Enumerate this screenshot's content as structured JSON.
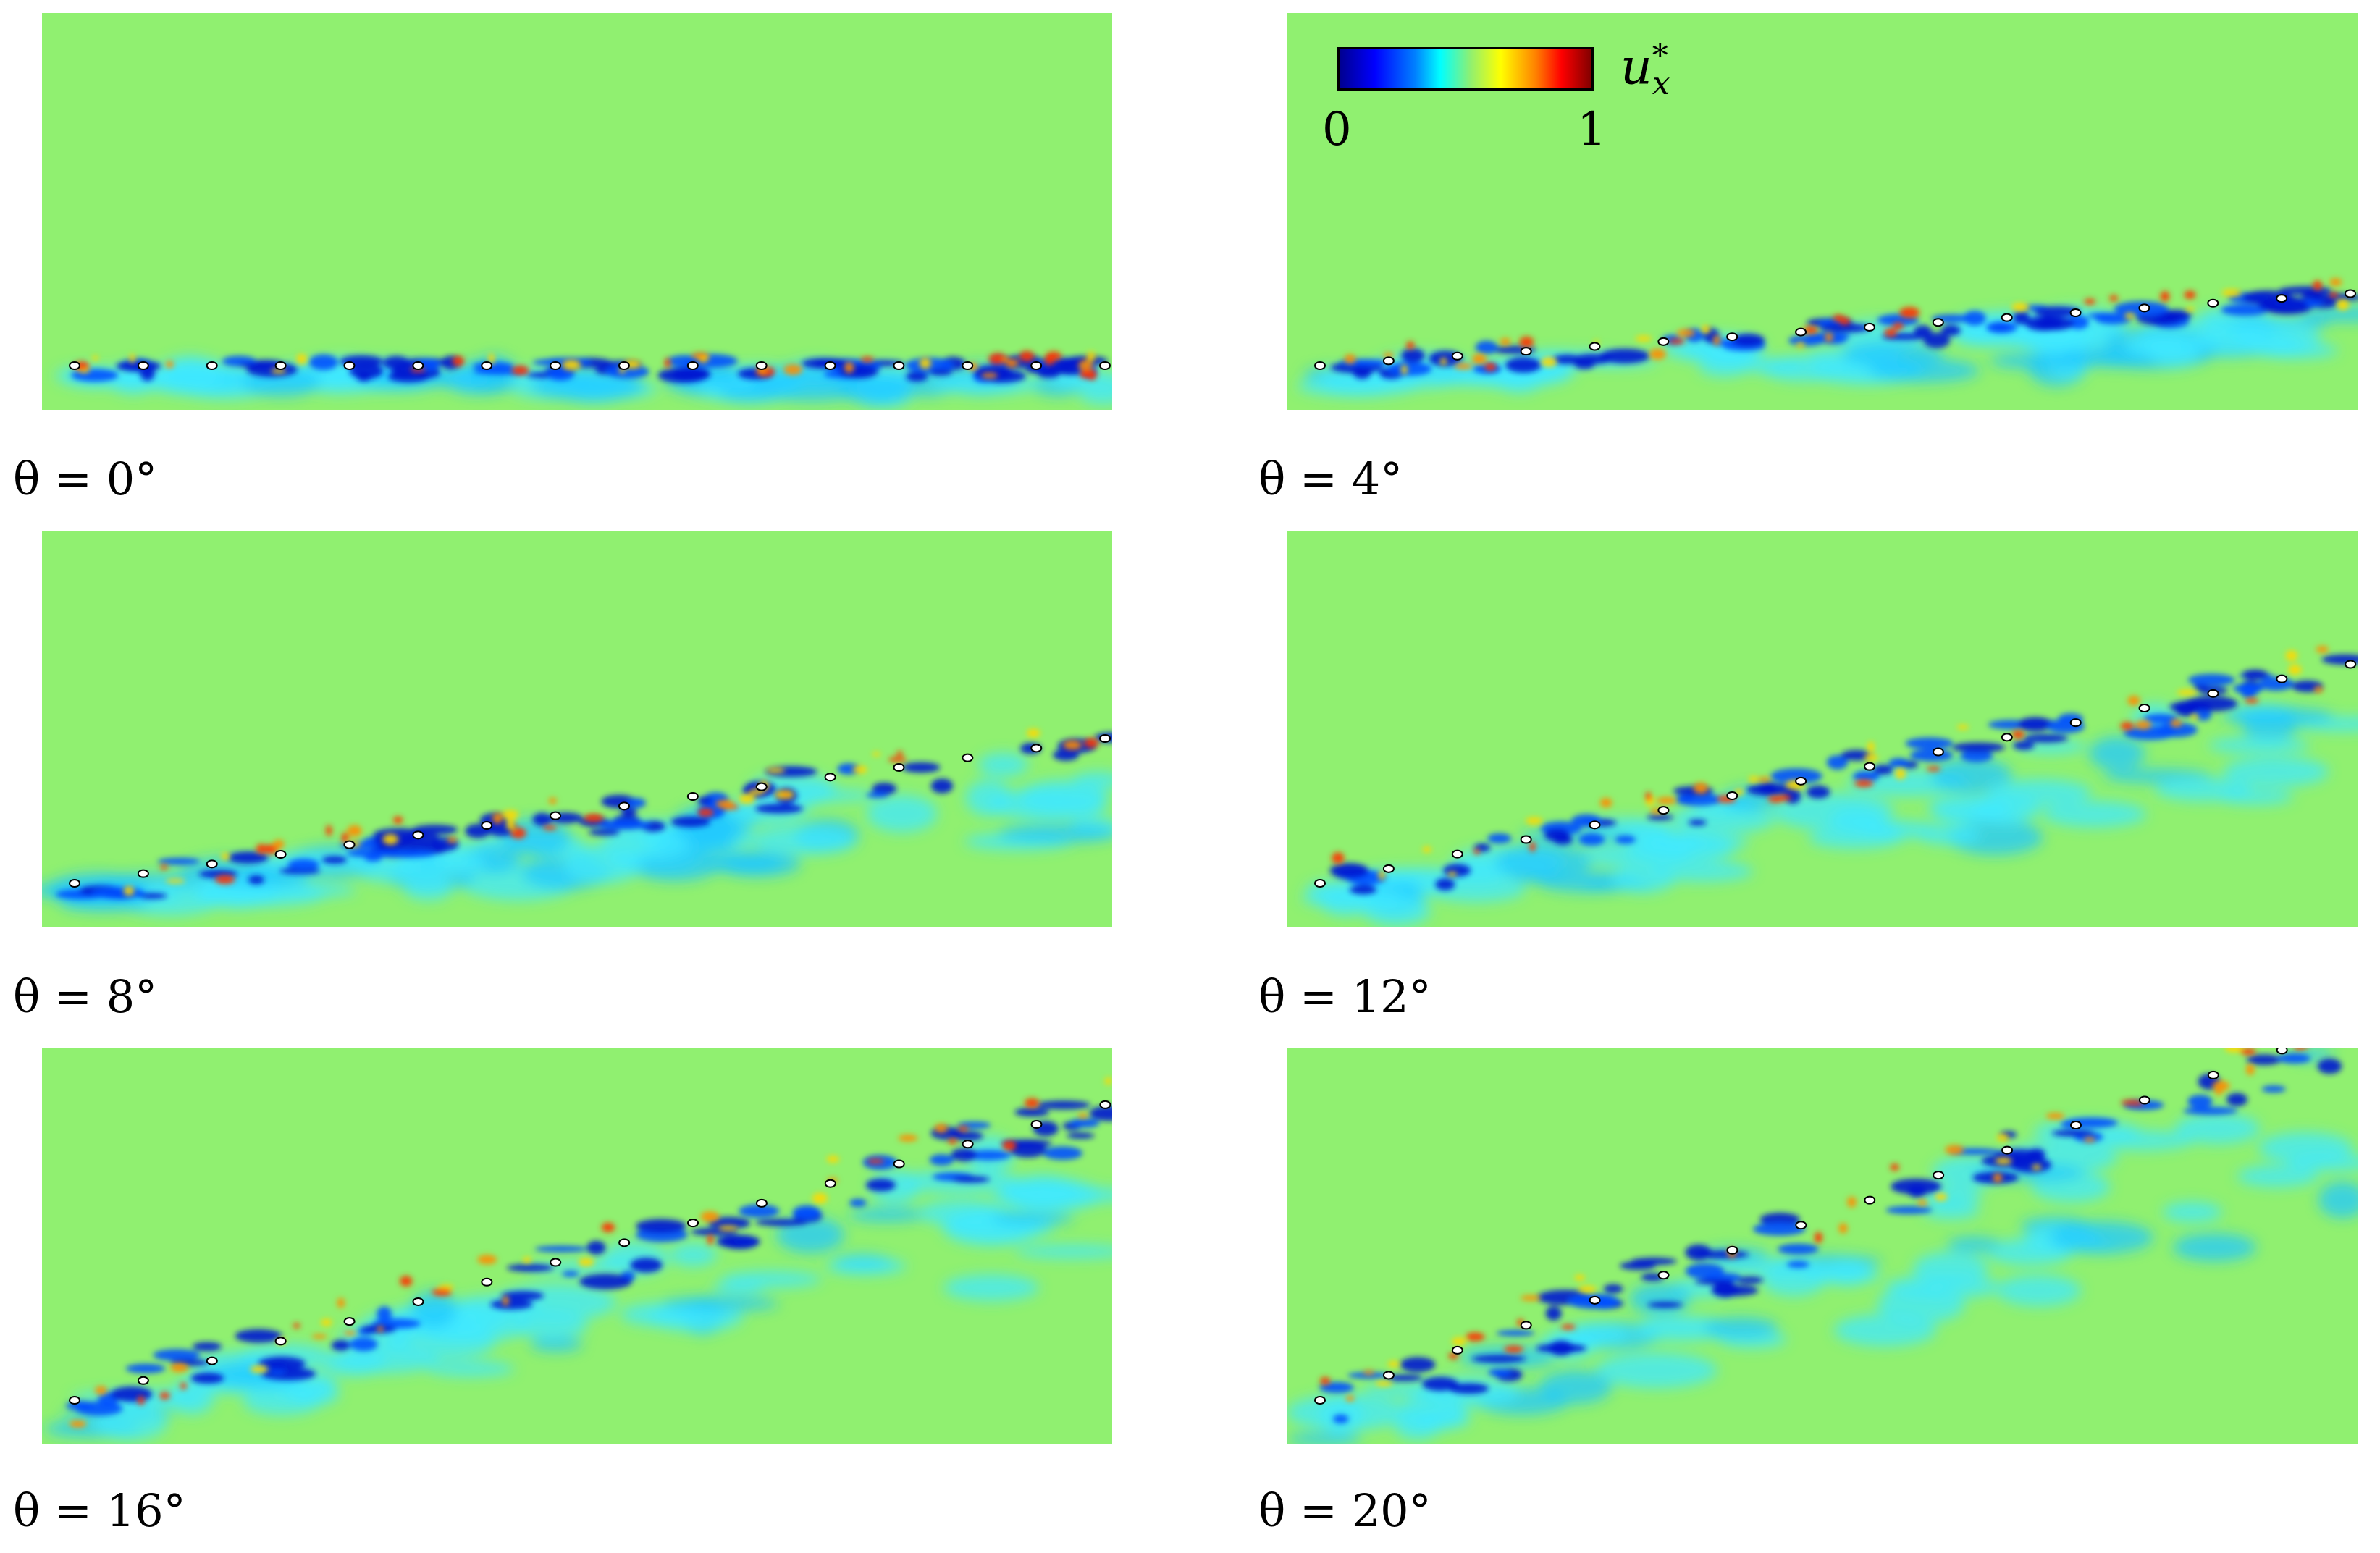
{
  "panels": [
    {
      "id": "p0",
      "angle_label": "θ = 0°",
      "angle_deg": 0
    },
    {
      "id": "p4",
      "angle_label": "θ = 4°",
      "angle_deg": 4
    },
    {
      "id": "p8",
      "angle_label": "θ = 8°",
      "angle_deg": 8
    },
    {
      "id": "p12",
      "angle_label": "θ = 12°",
      "angle_deg": 12
    },
    {
      "id": "p16",
      "angle_label": "θ = 16°",
      "angle_deg": 16
    },
    {
      "id": "p20",
      "angle_label": "θ = 20°",
      "angle_deg": 20
    }
  ],
  "colorbar": {
    "min_label": "0",
    "max_label": "1",
    "var": "u",
    "var_sup": "*",
    "var_sub": "x",
    "colormap": "jet",
    "stops": [
      "#00008f",
      "#0000ff",
      "#0080ff",
      "#00ffff",
      "#90f070",
      "#ffff00",
      "#ff8000",
      "#ff0000",
      "#800000"
    ]
  },
  "background_color": "#90f070"
}
